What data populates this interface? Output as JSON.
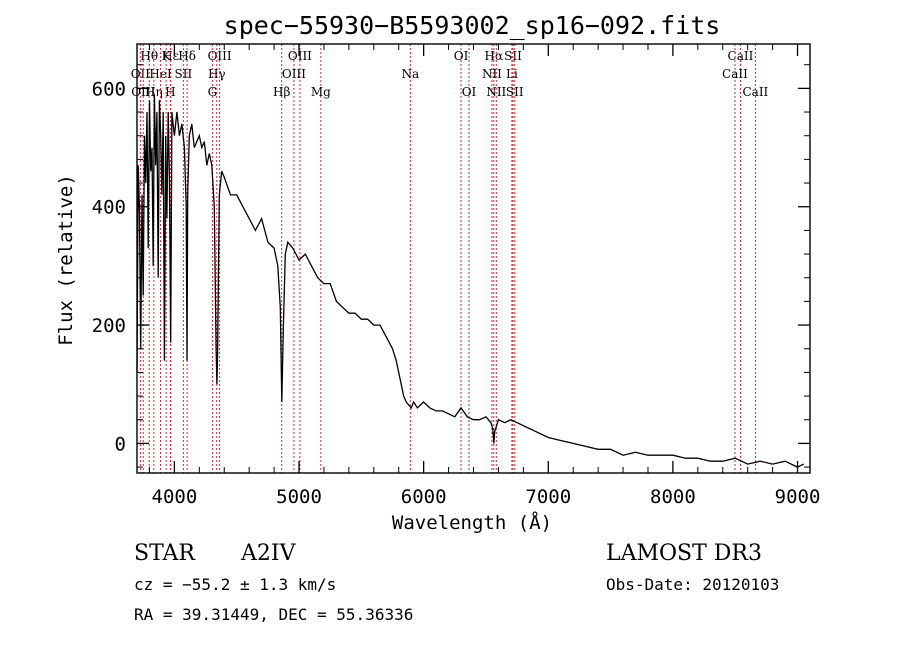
{
  "chart_data": {
    "type": "line",
    "title": "spec−55930−B5593002_sp16−092.fits",
    "xlabel": "Wavelength (Å)",
    "ylabel": "Flux (relative)",
    "xlim": [
      3700,
      9100
    ],
    "ylim": [
      -50,
      675
    ],
    "xticks": [
      4000,
      5000,
      6000,
      7000,
      8000,
      9000
    ],
    "yticks": [
      0,
      200,
      400,
      600
    ],
    "line_color": "#000000",
    "marker_color": "#c03030",
    "grid": false,
    "series": [
      {
        "name": "spectrum",
        "x": [
          3700,
          3710,
          3720,
          3730,
          3740,
          3750,
          3760,
          3770,
          3780,
          3790,
          3800,
          3810,
          3820,
          3830,
          3840,
          3850,
          3860,
          3870,
          3880,
          3890,
          3900,
          3910,
          3920,
          3930,
          3940,
          3950,
          3960,
          3970,
          3980,
          3990,
          4000,
          4020,
          4040,
          4060,
          4080,
          4095,
          4101,
          4107,
          4120,
          4140,
          4160,
          4180,
          4200,
          4220,
          4240,
          4260,
          4280,
          4300,
          4320,
          4335,
          4341,
          4347,
          4360,
          4380,
          4400,
          4450,
          4500,
          4550,
          4600,
          4650,
          4700,
          4750,
          4800,
          4830,
          4850,
          4862,
          4875,
          4890,
          4910,
          4950,
          5000,
          5050,
          5100,
          5150,
          5200,
          5250,
          5300,
          5350,
          5400,
          5450,
          5500,
          5550,
          5600,
          5650,
          5700,
          5750,
          5780,
          5800,
          5820,
          5840,
          5860,
          5880,
          5900,
          5920,
          5950,
          6000,
          6050,
          6100,
          6150,
          6200,
          6250,
          6300,
          6350,
          6400,
          6450,
          6500,
          6540,
          6555,
          6563,
          6570,
          6585,
          6600,
          6650,
          6700,
          6750,
          6800,
          6850,
          6900,
          6950,
          7000,
          7100,
          7200,
          7300,
          7400,
          7500,
          7600,
          7700,
          7800,
          7900,
          8000,
          8100,
          8200,
          8300,
          8400,
          8500,
          8600,
          8700,
          8800,
          8900,
          9000,
          9050
        ],
        "values": [
          120,
          470,
          390,
          160,
          420,
          250,
          520,
          440,
          560,
          330,
          580,
          460,
          500,
          300,
          590,
          470,
          560,
          280,
          580,
          520,
          420,
          560,
          140,
          520,
          380,
          560,
          450,
          170,
          560,
          540,
          520,
          560,
          520,
          540,
          500,
          400,
          140,
          420,
          520,
          540,
          500,
          510,
          520,
          500,
          510,
          470,
          490,
          470,
          400,
          160,
          100,
          150,
          420,
          460,
          450,
          420,
          420,
          400,
          380,
          360,
          380,
          340,
          330,
          300,
          230,
          70,
          200,
          320,
          340,
          330,
          310,
          320,
          300,
          280,
          270,
          270,
          240,
          230,
          220,
          220,
          210,
          210,
          200,
          200,
          180,
          160,
          140,
          120,
          100,
          80,
          70,
          65,
          60,
          70,
          60,
          70,
          60,
          55,
          55,
          50,
          45,
          60,
          45,
          40,
          40,
          45,
          35,
          25,
          0,
          20,
          30,
          40,
          35,
          40,
          35,
          30,
          25,
          20,
          15,
          10,
          5,
          0,
          -5,
          -10,
          -10,
          -20,
          -15,
          -20,
          -20,
          -20,
          -25,
          -25,
          -30,
          -30,
          -25,
          -35,
          -30,
          -35,
          -30,
          -40,
          -35
        ]
      }
    ],
    "line_markers": [
      {
        "label": "Hθ",
        "x": 3798,
        "row": 0
      },
      {
        "label": "OII",
        "x": 3727,
        "row": 1
      },
      {
        "label": "OIII",
        "x": 3750,
        "row": 2
      },
      {
        "label": "Hη",
        "x": 3835,
        "row": 2
      },
      {
        "label": "HeI",
        "x": 3889,
        "row": 1
      },
      {
        "label": "Hε",
        "x": 3970,
        "row": 0
      },
      {
        "label": "K",
        "x": 3934,
        "row": 0
      },
      {
        "label": "H",
        "x": 3968,
        "row": 2
      },
      {
        "label": "SII",
        "x": 4072,
        "row": 1
      },
      {
        "label": "Hδ",
        "x": 4102,
        "row": 0
      },
      {
        "label": "OIII",
        "x": 4363,
        "row": 0
      },
      {
        "label": "Hγ",
        "x": 4340,
        "row": 1
      },
      {
        "label": "G",
        "x": 4305,
        "row": 2
      },
      {
        "label": "Hβ",
        "x": 4861,
        "row": 2
      },
      {
        "label": "OIII",
        "x": 4959,
        "row": 1
      },
      {
        "label": "OIII",
        "x": 5007,
        "row": 0
      },
      {
        "label": "Mg",
        "x": 5175,
        "row": 2
      },
      {
        "label": "Na",
        "x": 5893,
        "row": 1
      },
      {
        "label": "OI",
        "x": 6300,
        "row": 0
      },
      {
        "label": "OI",
        "x": 6364,
        "row": 2
      },
      {
        "label": "Hα",
        "x": 6563,
        "row": 0
      },
      {
        "label": "NII",
        "x": 6548,
        "row": 1
      },
      {
        "label": "NII",
        "x": 6583,
        "row": 2
      },
      {
        "label": "SII",
        "x": 6717,
        "row": 0
      },
      {
        "label": "Li",
        "x": 6708,
        "row": 1
      },
      {
        "label": "SII",
        "x": 6731,
        "row": 2
      },
      {
        "label": "CaII",
        "x": 8542,
        "row": 0
      },
      {
        "label": "CaII",
        "x": 8498,
        "row": 1
      },
      {
        "label": "CaII",
        "x": 8662,
        "row": 2
      }
    ]
  },
  "info": {
    "object_class": "STAR",
    "subclass": "A2IV",
    "survey": "LAMOST DR3",
    "cz": "cz = −55.2 ± 1.3 km/s",
    "obs_date": "Obs-Date: 20120103",
    "coords": "RA =  39.31449, DEC =  55.36336"
  }
}
